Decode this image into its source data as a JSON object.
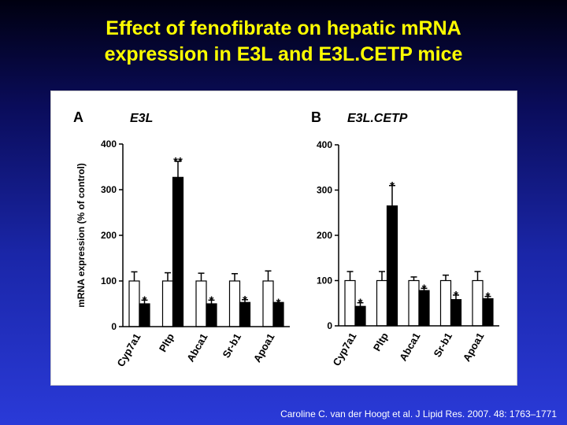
{
  "slide": {
    "title_line1": "Effect of fenofibrate on hepatic mRNA",
    "title_line2": "expression in E3L and E3L.CETP mice",
    "citation": "Caroline C. van der Hoogt et al. J Lipid Res. 2007. 48: 1763–1771"
  },
  "chart_data": [
    {
      "type": "bar",
      "panel_letter": "A",
      "title": "E3L",
      "ylabel": "mRNA expression (% of control)",
      "xlabel": "",
      "ylim": [
        0,
        400
      ],
      "yticks": [
        0,
        100,
        200,
        300,
        400
      ],
      "categories": [
        "Cyp7a1",
        "Pltp",
        "Abca1",
        "Sr-b1",
        "Apoa1"
      ],
      "series": [
        {
          "fill": "#ffffff",
          "values": [
            100,
            100,
            100,
            100,
            100
          ],
          "errors": [
            20,
            18,
            17,
            16,
            22
          ],
          "annotations": [
            "",
            "",
            "",
            "",
            ""
          ]
        },
        {
          "fill": "#000000",
          "values": [
            50,
            327,
            50,
            53,
            53
          ],
          "errors": [
            8,
            35,
            8,
            6,
            0
          ],
          "annotations": [
            "*",
            "**",
            "*",
            "*",
            "*"
          ]
        }
      ]
    },
    {
      "type": "bar",
      "panel_letter": "B",
      "title": "E3L.CETP",
      "ylabel": "",
      "xlabel": "",
      "ylim": [
        0,
        400
      ],
      "yticks": [
        0,
        100,
        200,
        300,
        400
      ],
      "categories": [
        "Cyp7a1",
        "Pltp",
        "Abca1",
        "Sr-b1",
        "Apoa1"
      ],
      "series": [
        {
          "fill": "#ffffff",
          "values": [
            100,
            100,
            100,
            100,
            100
          ],
          "errors": [
            20,
            20,
            8,
            12,
            20
          ],
          "annotations": [
            "",
            "",
            "",
            "",
            ""
          ]
        },
        {
          "fill": "#000000",
          "values": [
            43,
            265,
            78,
            58,
            60
          ],
          "errors": [
            8,
            45,
            5,
            10,
            5
          ],
          "annotations": [
            "*",
            "*",
            "*",
            "*",
            "*"
          ]
        }
      ]
    }
  ]
}
